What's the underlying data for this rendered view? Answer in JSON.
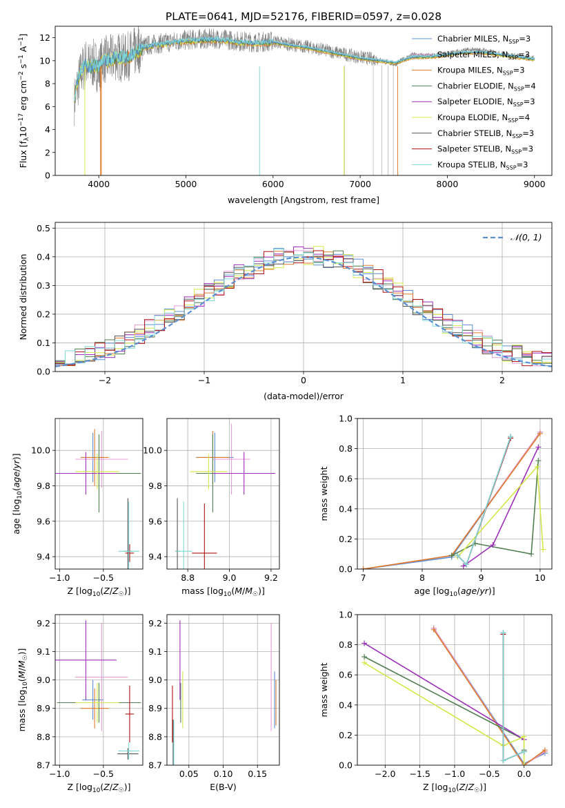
{
  "figure": {
    "title": "PLATE=0641, MJD=52176, FIBERID=0597, z=0.028"
  },
  "models": [
    {
      "name": "Chabrier MILES",
      "nssp": "3",
      "color": "#5b8fd4"
    },
    {
      "name": "Salpeter MILES",
      "nssp": "3",
      "color": "#e59ad5"
    },
    {
      "name": "Kroupa MILES",
      "nssp": "3",
      "color": "#e07b2a"
    },
    {
      "name": "Chabrier ELODIE",
      "nssp": "4",
      "color": "#4f7f4f"
    },
    {
      "name": "Salpeter ELODIE",
      "nssp": "3",
      "color": "#9b2fb8"
    },
    {
      "name": "Kroupa ELODIE",
      "nssp": "4",
      "color": "#d4e84a"
    },
    {
      "name": "Chabrier STELIB",
      "nssp": "3",
      "color": "#555555"
    },
    {
      "name": "Salpeter STELIB",
      "nssp": "3",
      "color": "#b01010"
    },
    {
      "name": "Kroupa STELIB",
      "nssp": "3",
      "color": "#7fd8d8"
    }
  ],
  "chart_data": [
    {
      "id": "spectrum",
      "type": "line",
      "xlabel": "wavelength [Angstrom, rest frame]",
      "ylabel": "Flux [f_λ 10^-17 erg cm^-2 s^-1 A^-1]",
      "xlim": [
        3500,
        9200
      ],
      "ylim": [
        0,
        13
      ],
      "xticks": [
        "4000",
        "5000",
        "6000",
        "7000",
        "8000",
        "9000"
      ],
      "yticks": [
        "0",
        "2",
        "4",
        "6",
        "8",
        "10",
        "12"
      ],
      "grid": false,
      "legend": "top-right",
      "data_x": [
        3720,
        3760,
        3800,
        3850,
        3900,
        3950,
        4000,
        4050,
        4100,
        4200,
        4300,
        4400,
        4500,
        4600,
        4700,
        4800,
        4900,
        5000,
        5200,
        5400,
        5600,
        5800,
        6000,
        6200,
        6400,
        6600,
        6800,
        7000,
        7200,
        7400,
        7600,
        7800,
        8000,
        8200,
        8400,
        8600,
        8800,
        9000
      ],
      "data_y": [
        6.5,
        8.0,
        9.0,
        9.8,
        9.5,
        9.8,
        9.2,
        10.2,
        10.0,
        10.4,
        10.2,
        10.7,
        11.2,
        11.4,
        11.5,
        11.6,
        11.7,
        11.8,
        11.9,
        11.9,
        11.7,
        11.6,
        11.7,
        11.4,
        11.2,
        10.9,
        10.6,
        10.3,
        10.1,
        9.7,
        10.5,
        10.4,
        10.6,
        10.9,
        10.9,
        10.6,
        10.4,
        10.2
      ],
      "model_y": [
        7.0,
        8.3,
        9.2,
        9.6,
        9.4,
        9.6,
        9.4,
        10.1,
        10.0,
        10.3,
        10.2,
        10.6,
        11.1,
        11.3,
        11.4,
        11.5,
        11.6,
        11.7,
        11.8,
        11.8,
        11.6,
        11.5,
        11.6,
        11.3,
        11.1,
        10.8,
        10.5,
        10.2,
        10.0,
        9.8,
        10.3,
        10.3,
        10.5,
        10.7,
        10.7,
        10.5,
        10.3,
        10.1
      ]
    },
    {
      "id": "residual-hist",
      "type": "bar",
      "xlabel": "(data-model)/error",
      "ylabel": "Normed distribution",
      "xlim": [
        -2.5,
        2.5
      ],
      "ylim": [
        0,
        0.52
      ],
      "xticks": [
        "−2",
        "−1",
        "0",
        "1",
        "2"
      ],
      "yticks": [
        "0.0",
        "0.1",
        "0.2",
        "0.3",
        "0.4",
        "0.5"
      ],
      "grid": true,
      "legend": "top-right",
      "legend_label": "𝒩(0, 1)",
      "bin_width": 0.1
    },
    {
      "id": "age-vs-Z",
      "type": "scatter",
      "xlabel": "Z [log10(Z/Z☉)]",
      "ylabel": "age  [log10(age/yr)]",
      "xlim": [
        -1.05,
        -0.05
      ],
      "ylim": [
        9.33,
        10.18
      ],
      "xticks": [
        "−1.0",
        "−0.5"
      ],
      "yticks": [
        "9.4",
        "9.6",
        "9.8",
        "10.0"
      ],
      "grid": true,
      "points": [
        {
          "m": 0,
          "x": -0.62,
          "y": 9.96,
          "xe": 0.12,
          "ye": 0.14
        },
        {
          "m": 1,
          "x": -0.52,
          "y": 9.95,
          "xe": 0.3,
          "ye": 0.16
        },
        {
          "m": 2,
          "x": -0.6,
          "y": 9.96,
          "xe": 0.16,
          "ye": 0.16
        },
        {
          "m": 3,
          "x": -0.55,
          "y": 9.87,
          "xe": 0.48,
          "ye": 0.22
        },
        {
          "m": 4,
          "x": -0.7,
          "y": 9.87,
          "xe": 0.35,
          "ye": 0.12
        },
        {
          "m": 5,
          "x": -0.57,
          "y": 9.88,
          "xe": 0.25,
          "ye": 0.1
        },
        {
          "m": 6,
          "x": -0.22,
          "y": 9.43,
          "xe": 0.05,
          "ye": 0.3
        },
        {
          "m": 7,
          "x": -0.2,
          "y": 9.42,
          "xe": 0.05,
          "ye": 0.05
        },
        {
          "m": 8,
          "x": -0.21,
          "y": 9.43,
          "xe": 0.12,
          "ye": 0.28
        }
      ]
    },
    {
      "id": "age-vs-mass",
      "type": "scatter",
      "xlabel": "mass [log10(M/M☉)]",
      "ylabel": "",
      "xlim": [
        8.7,
        9.24
      ],
      "ylim": [
        9.33,
        10.18
      ],
      "xticks": [
        "8.8",
        "9.0",
        "9.2"
      ],
      "yticks": [
        "9.4",
        "9.6",
        "9.8",
        "10.0"
      ],
      "grid": true,
      "points": [
        {
          "m": 0,
          "x": 8.93,
          "y": 9.96,
          "xe": 0.09,
          "ye": 0.14
        },
        {
          "m": 1,
          "x": 9.01,
          "y": 9.95,
          "xe": 0.09,
          "ye": 0.2
        },
        {
          "m": 2,
          "x": 8.92,
          "y": 9.96,
          "xe": 0.08,
          "ye": 0.15
        },
        {
          "m": 3,
          "x": 8.92,
          "y": 9.87,
          "xe": 0.08,
          "ye": 0.22
        },
        {
          "m": 4,
          "x": 9.07,
          "y": 9.87,
          "xe": 0.15,
          "ye": 0.12
        },
        {
          "m": 5,
          "x": 8.9,
          "y": 9.88,
          "xe": 0.09,
          "ye": 0.1
        },
        {
          "m": 6,
          "x": 8.75,
          "y": 9.43,
          "xe": 0.01,
          "ye": 0.3
        },
        {
          "m": 7,
          "x": 8.88,
          "y": 9.42,
          "xe": 0.06,
          "ye": 0.28
        },
        {
          "m": 8,
          "x": 8.78,
          "y": 9.43,
          "xe": 0.04,
          "ye": 0.28
        }
      ]
    },
    {
      "id": "weight-vs-age",
      "type": "line",
      "xlabel": "age  [log10(age/yr)]",
      "ylabel": "mass weight",
      "xlim": [
        6.9,
        10.2
      ],
      "ylim": [
        0,
        1
      ],
      "xticks": [
        "7",
        "8",
        "9",
        "10"
      ],
      "yticks": [
        "0.0",
        "0.2",
        "0.4",
        "0.6",
        "0.8",
        "1.0"
      ],
      "grid": true,
      "series": [
        {
          "m": 0,
          "x": [
            7.0,
            8.5,
            10.0
          ],
          "y": [
            0.0,
            0.08,
            0.91
          ]
        },
        {
          "m": 1,
          "x": [
            7.0,
            8.5,
            10.0
          ],
          "y": [
            0.0,
            0.09,
            0.91
          ]
        },
        {
          "m": 2,
          "x": [
            7.0,
            8.5,
            10.0
          ],
          "y": [
            0.0,
            0.09,
            0.9
          ]
        },
        {
          "m": 3,
          "x": [
            8.5,
            8.9,
            9.85,
            9.97
          ],
          "y": [
            0.09,
            0.17,
            0.1,
            0.72
          ]
        },
        {
          "m": 4,
          "x": [
            8.7,
            9.2,
            9.97
          ],
          "y": [
            0.02,
            0.16,
            0.81
          ]
        },
        {
          "m": 5,
          "x": [
            8.6,
            9.95,
            10.05
          ],
          "y": [
            0.08,
            0.68,
            0.13
          ]
        },
        {
          "m": 6,
          "x": [
            8.6,
            8.75,
            9.5
          ],
          "y": [
            0.09,
            0.03,
            0.88
          ]
        },
        {
          "m": 7,
          "x": [
            8.6,
            8.75,
            9.5
          ],
          "y": [
            0.09,
            0.03,
            0.87
          ]
        },
        {
          "m": 8,
          "x": [
            8.6,
            8.75,
            9.5
          ],
          "y": [
            0.09,
            0.03,
            0.88
          ]
        }
      ]
    },
    {
      "id": "mass-vs-Z",
      "type": "scatter",
      "xlabel": "Z [log10(Z/Z☉)]",
      "ylabel": "mass [log10(M/M☉)]",
      "xlim": [
        -1.05,
        -0.05
      ],
      "ylim": [
        8.7,
        9.23
      ],
      "xticks": [
        "−1.0",
        "−0.5"
      ],
      "yticks": [
        "8.7",
        "8.8",
        "8.9",
        "9.0",
        "9.1",
        "9.2"
      ],
      "grid": true,
      "points": [
        {
          "m": 0,
          "x": -0.62,
          "y": 8.93,
          "xe": 0.12,
          "ye": 0.07
        },
        {
          "m": 1,
          "x": -0.52,
          "y": 9.01,
          "xe": 0.3,
          "ye": 0.19
        },
        {
          "m": 2,
          "x": -0.6,
          "y": 8.9,
          "xe": 0.16,
          "ye": 0.07
        },
        {
          "m": 3,
          "x": -0.55,
          "y": 8.92,
          "xe": 0.48,
          "ye": 0.07
        },
        {
          "m": 4,
          "x": -0.7,
          "y": 9.07,
          "xe": 0.35,
          "ye": 0.14
        },
        {
          "m": 5,
          "x": -0.57,
          "y": 8.92,
          "xe": 0.25,
          "ye": 0.07
        },
        {
          "m": 6,
          "x": -0.22,
          "y": 8.74,
          "xe": 0.12,
          "ye": 0.02
        },
        {
          "m": 7,
          "x": -0.2,
          "y": 8.88,
          "xe": 0.05,
          "ye": 0.1
        },
        {
          "m": 8,
          "x": -0.21,
          "y": 8.75,
          "xe": 0.12,
          "ye": 0.03
        }
      ]
    },
    {
      "id": "mass-vs-ebv",
      "type": "scatter",
      "xlabel": "E(B-V)",
      "ylabel": "",
      "xlim": [
        0.018,
        0.182
      ],
      "ylim": [
        8.7,
        9.23
      ],
      "xticks": [
        "0.05",
        "0.10",
        "0.15"
      ],
      "yticks": [
        "8.7",
        "8.8",
        "8.9",
        "9.0",
        "9.1",
        "9.2"
      ],
      "grid": true,
      "points": [
        {
          "m": 0,
          "x": 0.175,
          "y": 8.93,
          "xe": 0,
          "ye": 0.1
        },
        {
          "m": 1,
          "x": 0.17,
          "y": 9.01,
          "xe": 0,
          "ye": 0.19
        },
        {
          "m": 2,
          "x": 0.177,
          "y": 8.92,
          "xe": 0,
          "ye": 0.08
        },
        {
          "m": 3,
          "x": 0.038,
          "y": 8.92,
          "xe": 0,
          "ye": 0.07
        },
        {
          "m": 4,
          "x": 0.037,
          "y": 9.07,
          "xe": 0,
          "ye": 0.14
        },
        {
          "m": 5,
          "x": 0.041,
          "y": 8.93,
          "xe": 0,
          "ye": 0.1
        },
        {
          "m": 6,
          "x": 0.027,
          "y": 8.76,
          "xe": 0,
          "ye": 0.1
        },
        {
          "m": 7,
          "x": 0.026,
          "y": 8.88,
          "xe": 0,
          "ye": 0.1
        },
        {
          "m": 8,
          "x": 0.028,
          "y": 8.78,
          "xe": 0,
          "ye": 0.08
        }
      ]
    },
    {
      "id": "weight-vs-Z",
      "type": "line",
      "xlabel": "Z [log10(Z/Z☉)]",
      "ylabel": "mass weight",
      "xlim": [
        -2.4,
        0.4
      ],
      "ylim": [
        0,
        1
      ],
      "xticks": [
        "−2.0",
        "−1.5",
        "−1.0",
        "−0.5",
        "0.0"
      ],
      "yticks": [
        "0.0",
        "0.2",
        "0.4",
        "0.6",
        "0.8",
        "1.0"
      ],
      "grid": true,
      "series": [
        {
          "m": 0,
          "x": [
            -1.3,
            0.0,
            0.3
          ],
          "y": [
            0.91,
            0.01,
            0.08
          ]
        },
        {
          "m": 1,
          "x": [
            -1.3,
            0.0,
            0.3
          ],
          "y": [
            0.91,
            0.0,
            0.09
          ]
        },
        {
          "m": 2,
          "x": [
            -1.3,
            0.0,
            0.3
          ],
          "y": [
            0.9,
            0.0,
            0.1
          ]
        },
        {
          "m": 3,
          "x": [
            -2.3,
            0.0,
            0.0
          ],
          "y": [
            0.72,
            0.17,
            0.1
          ]
        },
        {
          "m": 4,
          "x": [
            -2.3,
            0.0
          ],
          "y": [
            0.81,
            0.17
          ]
        },
        {
          "m": 5,
          "x": [
            -2.3,
            -0.3,
            0.0,
            0.0
          ],
          "y": [
            0.68,
            0.13,
            0.19,
            0.0
          ]
        },
        {
          "m": 6,
          "x": [
            -0.3,
            -0.3,
            0.0
          ],
          "y": [
            0.88,
            0.03,
            0.09
          ]
        },
        {
          "m": 7,
          "x": [
            -0.3,
            -0.3,
            0.0
          ],
          "y": [
            0.87,
            0.03,
            0.09
          ]
        },
        {
          "m": 8,
          "x": [
            -0.3,
            -0.3,
            0.0
          ],
          "y": [
            0.88,
            0.03,
            0.09
          ]
        }
      ]
    }
  ]
}
